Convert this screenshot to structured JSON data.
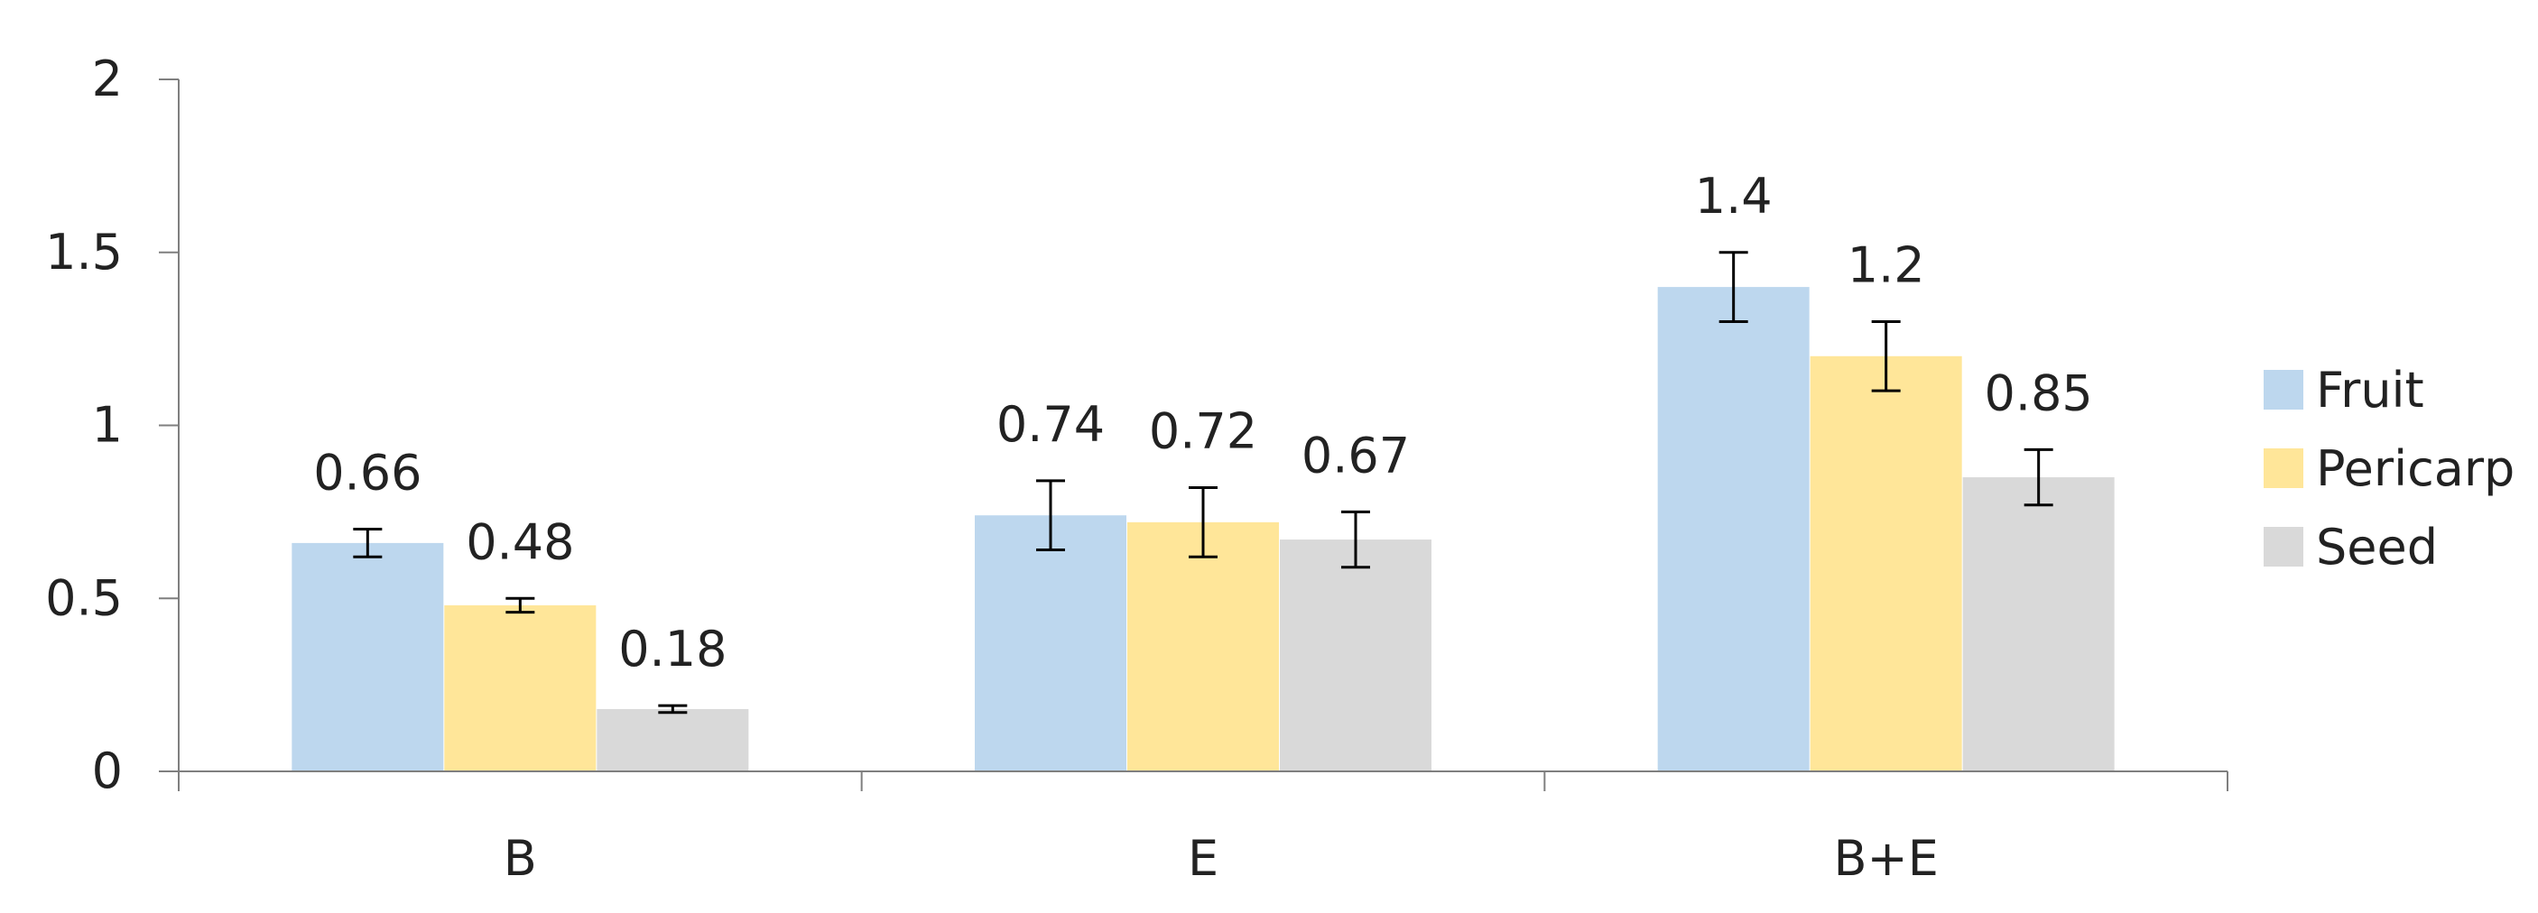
{
  "chart_data": {
    "type": "bar",
    "categories": [
      "B",
      "E",
      "B+E"
    ],
    "series": [
      {
        "name": "Fruit",
        "values": [
          0.66,
          0.74,
          1.4
        ],
        "errors": [
          0.04,
          0.1,
          0.1
        ],
        "color": "#bdd7ee"
      },
      {
        "name": "Pericarp",
        "values": [
          0.48,
          0.72,
          1.2
        ],
        "errors": [
          0.02,
          0.1,
          0.1
        ],
        "color": "#ffe699"
      },
      {
        "name": "Seed",
        "values": [
          0.18,
          0.67,
          0.85
        ],
        "errors": [
          0.01,
          0.08,
          0.08
        ],
        "color": "#d9d9d9"
      }
    ],
    "data_labels": [
      [
        "0.66",
        "0.74",
        "1.4"
      ],
      [
        "0.48",
        "0.72",
        "1.2"
      ],
      [
        "0.18",
        "0.67",
        "0.85"
      ]
    ],
    "yticks": [
      "0",
      "0.5",
      "1",
      "1.5",
      "2"
    ],
    "ylim": [
      0,
      2
    ],
    "title": "",
    "xlabel": "",
    "ylabel": "",
    "grid": false,
    "legend_position": "right",
    "axis_color": "#7f7f7f"
  }
}
